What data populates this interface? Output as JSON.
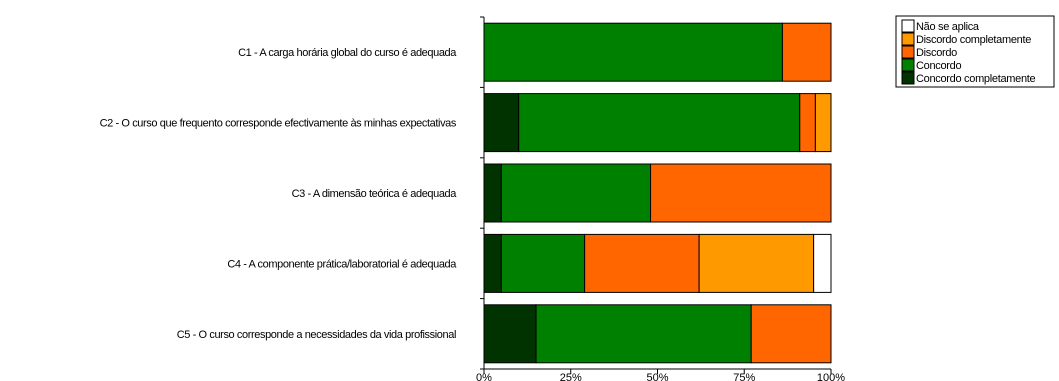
{
  "chart_data": {
    "type": "bar",
    "orientation": "horizontal",
    "stacked": "percent",
    "categories": [
      "C1 - A carga horária global do curso é adequada",
      "C2 - O curso que frequento corresponde efectivamente às minhas expectativas",
      "C3 - A dimensão teórica é adequada",
      "C4 - A componente prática/laboratorial é adequada",
      "C5 - O curso corresponde a necessidades da vida profissional"
    ],
    "series": [
      {
        "name": "Concordo completamente",
        "color": "#003300",
        "values": [
          0,
          10,
          5,
          5,
          15
        ]
      },
      {
        "name": "Concordo",
        "color": "#008000",
        "values": [
          86,
          81,
          43,
          24,
          62
        ]
      },
      {
        "name": "Discordo",
        "color": "#ff6600",
        "values": [
          14,
          4.5,
          52,
          33,
          23
        ]
      },
      {
        "name": "Discordo completamente",
        "color": "#ff9900",
        "values": [
          0,
          4.5,
          0,
          33,
          0
        ]
      },
      {
        "name": "Não se aplica",
        "color": "#ffffff",
        "values": [
          0,
          0,
          0,
          5,
          0
        ]
      }
    ],
    "xlim": [
      0,
      100
    ],
    "xticks": [
      "0%",
      "25%",
      "50%",
      "75%",
      "100%"
    ],
    "legend": {
      "position": "top-right",
      "order": [
        "Não se aplica",
        "Discordo completamente",
        "Discordo",
        "Concordo",
        "Concordo completamente"
      ]
    },
    "grid": false
  }
}
